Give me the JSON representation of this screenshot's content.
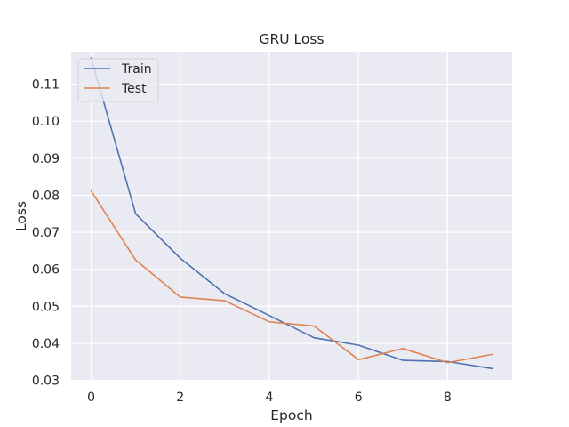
{
  "chart_data": {
    "type": "line",
    "title": "GRU Loss",
    "xlabel": "Epoch",
    "ylabel": "Loss",
    "x": [
      0,
      1,
      2,
      3,
      4,
      5,
      6,
      7,
      8,
      9
    ],
    "xlim": [
      -0.45,
      9.45
    ],
    "ylim": [
      0.0299,
      0.1188
    ],
    "xticks": [
      0,
      2,
      4,
      6,
      8
    ],
    "yticks": [
      0.03,
      0.04,
      0.05,
      0.06,
      0.07,
      0.08,
      0.09,
      0.1,
      0.11
    ],
    "ytick_labels": [
      "0.03",
      "0.04",
      "0.05",
      "0.06",
      "0.07",
      "0.08",
      "0.09",
      "0.10",
      "0.11"
    ],
    "grid": true,
    "legend_position": "top-left",
    "series": [
      {
        "name": "Train",
        "color": "#4c72b0",
        "values": [
          0.1171,
          0.075,
          0.063,
          0.0534,
          0.0475,
          0.0415,
          0.0395,
          0.0354,
          0.0351,
          0.0332
        ]
      },
      {
        "name": "Test",
        "color": "#dd8452",
        "values": [
          0.0812,
          0.0625,
          0.0525,
          0.0515,
          0.0458,
          0.0447,
          0.0356,
          0.0386,
          0.0348,
          0.037
        ]
      }
    ]
  }
}
